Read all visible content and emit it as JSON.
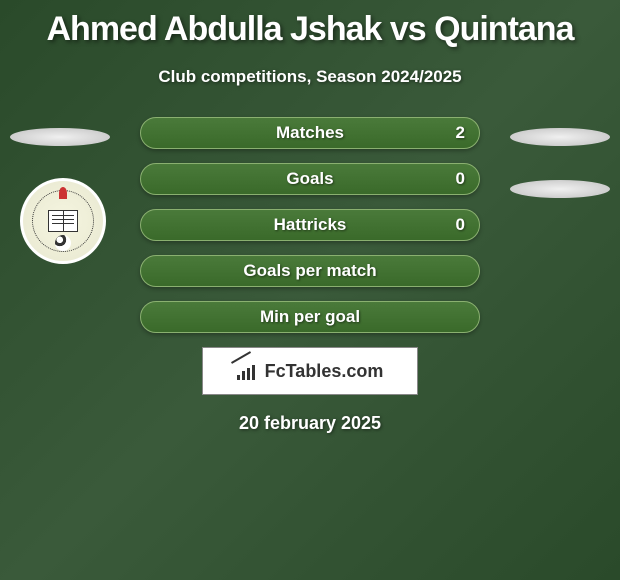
{
  "title": "Ahmed Abdulla Jshak vs Quintana",
  "subtitle": "Club competitions, Season 2024/2025",
  "stats": [
    {
      "label": "Matches",
      "value": "2"
    },
    {
      "label": "Goals",
      "value": "0"
    },
    {
      "label": "Hattricks",
      "value": "0"
    },
    {
      "label": "Goals per match",
      "value": ""
    },
    {
      "label": "Min per goal",
      "value": ""
    }
  ],
  "brand": "FcTables.com",
  "date": "20 february 2025",
  "colors": {
    "background_gradient_start": "#2a4a2a",
    "background_gradient_mid": "#3a5a3a",
    "pill_gradient_top": "#4a7a3a",
    "pill_gradient_bottom": "#3a6a2a",
    "pill_border": "#8ab070",
    "text": "#ffffff",
    "brand_bg": "#ffffff",
    "brand_text": "#333333"
  },
  "styling": {
    "title_fontsize": 34,
    "subtitle_fontsize": 17,
    "stat_fontsize": 17,
    "date_fontsize": 18,
    "pill_height": 32,
    "pill_border_radius": 16,
    "pill_gap": 14,
    "stats_column_width": 340
  }
}
